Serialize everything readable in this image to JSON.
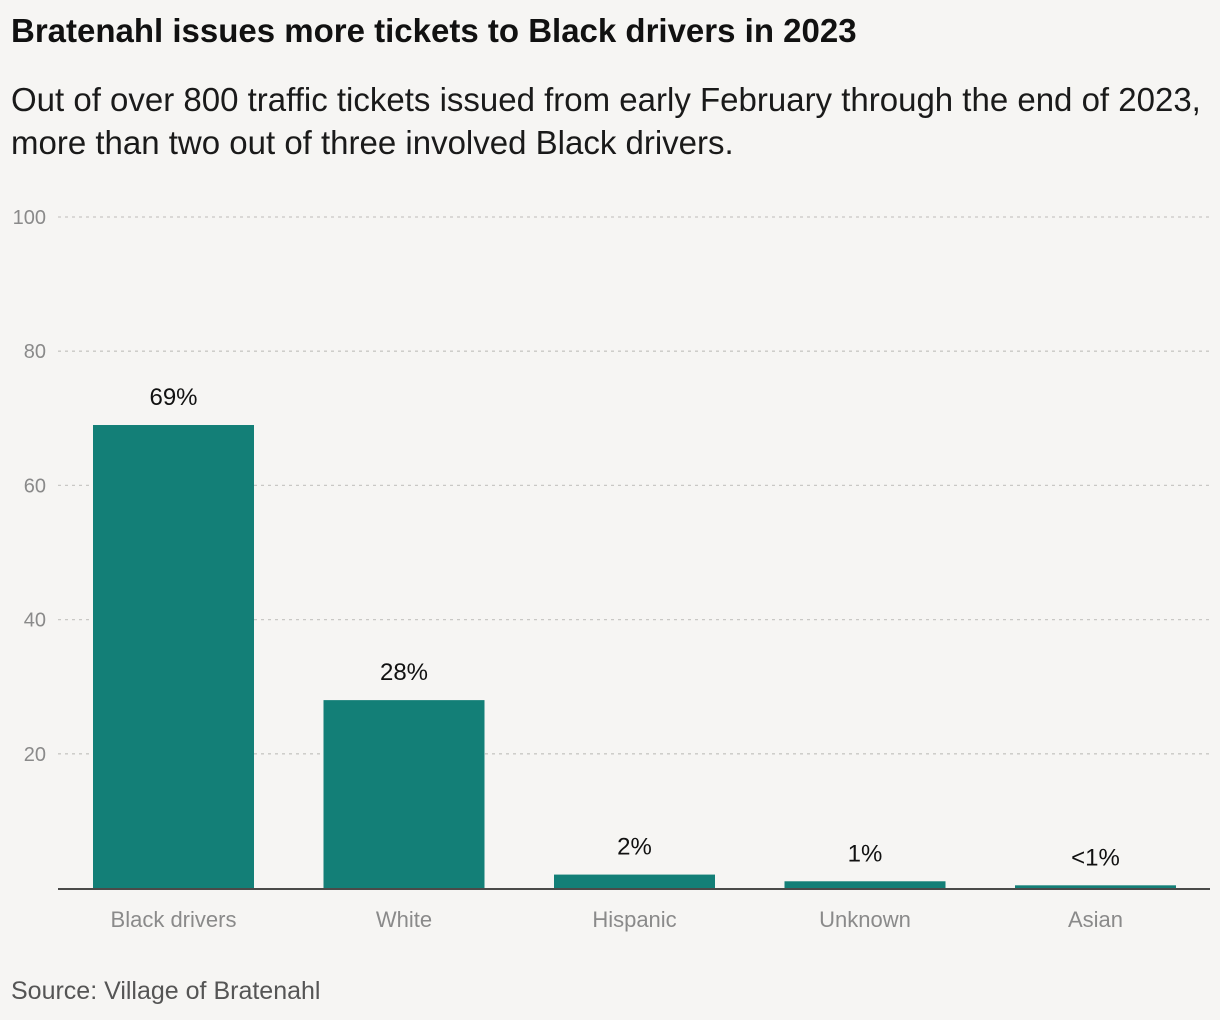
{
  "header": {
    "title": "Bratenahl issues more tickets to Black drivers in 2023",
    "subtitle": "Out of over 800 traffic tickets issued from early February through the end of 2023, more than two out of three involved Black drivers."
  },
  "footer": {
    "source": "Source: Village of Bratenahl"
  },
  "colors": {
    "bar": "#137f77",
    "grid": "#c9c8c5",
    "axis": "#111111",
    "tick_label": "#8a8a8a",
    "category_label": "#8a8a8a",
    "value_label": "#111111"
  },
  "chart_data": {
    "type": "bar",
    "categories": [
      "Black drivers",
      "White",
      "Hispanic",
      "Unknown",
      "Asian"
    ],
    "values": [
      69,
      28,
      2,
      1,
      0.4
    ],
    "value_labels": [
      "69%",
      "28%",
      "2%",
      "1%",
      "<1%"
    ],
    "ylim": [
      0,
      100
    ],
    "yticks": [
      20,
      40,
      60,
      80,
      100
    ],
    "grid": true,
    "xlabel": "",
    "ylabel": ""
  }
}
